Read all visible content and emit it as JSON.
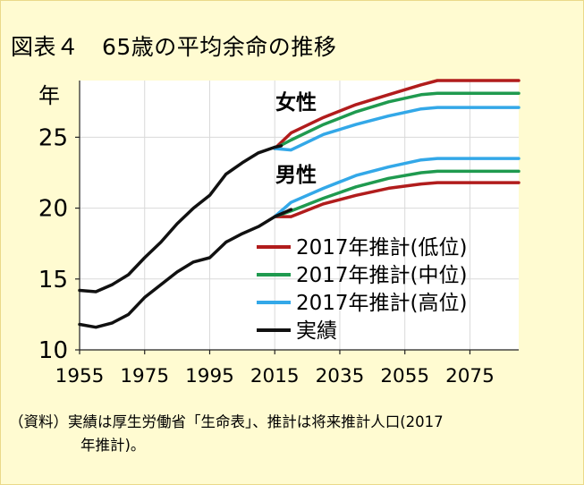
{
  "title": "図表４　65歳の平均余命の推移",
  "note_line1": "（資料）実績は厚生労働省「生命表」、推計は将来推計人口(2017",
  "note_line2": "年推計)。",
  "colors": {
    "low": "#b11c1c",
    "mid": "#1f9a4f",
    "high": "#33a8e8",
    "actual": "#111111",
    "background": "#fffbd1",
    "plot_background": "#ffffff"
  },
  "chart_data": {
    "type": "line",
    "title": "図表４　65歳の平均余命の推移",
    "xlabel": "",
    "ylabel": "年",
    "xlim": [
      1955,
      2090
    ],
    "ylim": [
      10,
      29
    ],
    "xticks": [
      1955,
      1975,
      1995,
      2015,
      2035,
      2055,
      2075
    ],
    "yticks": [
      10,
      15,
      20,
      25
    ],
    "grid": true,
    "legend_position": "bottom-right",
    "annotations": [
      "女性",
      "男性"
    ],
    "series": [
      {
        "name": "2017年推計(低位)",
        "color_key": "low",
        "group": "女性",
        "points": [
          [
            2015,
            24.2
          ],
          [
            2020,
            25.3
          ],
          [
            2030,
            26.4
          ],
          [
            2040,
            27.3
          ],
          [
            2050,
            28.0
          ],
          [
            2060,
            28.7
          ],
          [
            2065,
            29.0
          ],
          [
            2090,
            29.0
          ]
        ]
      },
      {
        "name": "2017年推計(中位)",
        "color_key": "mid",
        "group": "女性",
        "points": [
          [
            2015,
            24.2
          ],
          [
            2020,
            24.8
          ],
          [
            2030,
            25.9
          ],
          [
            2040,
            26.8
          ],
          [
            2050,
            27.5
          ],
          [
            2060,
            28.0
          ],
          [
            2065,
            28.1
          ],
          [
            2090,
            28.1
          ]
        ]
      },
      {
        "name": "2017年推計(高位)",
        "color_key": "high",
        "group": "女性",
        "points": [
          [
            2015,
            24.2
          ],
          [
            2020,
            24.1
          ],
          [
            2030,
            25.2
          ],
          [
            2040,
            25.9
          ],
          [
            2050,
            26.5
          ],
          [
            2060,
            27.0
          ],
          [
            2065,
            27.1
          ],
          [
            2090,
            27.1
          ]
        ]
      },
      {
        "name": "2017年推計(低位)",
        "color_key": "low",
        "group": "男性",
        "points": [
          [
            2015,
            19.4
          ],
          [
            2020,
            19.4
          ],
          [
            2030,
            20.3
          ],
          [
            2040,
            20.9
          ],
          [
            2050,
            21.4
          ],
          [
            2060,
            21.7
          ],
          [
            2065,
            21.8
          ],
          [
            2090,
            21.8
          ]
        ]
      },
      {
        "name": "2017年推計(中位)",
        "color_key": "mid",
        "group": "男性",
        "points": [
          [
            2015,
            19.4
          ],
          [
            2020,
            19.8
          ],
          [
            2030,
            20.7
          ],
          [
            2040,
            21.5
          ],
          [
            2050,
            22.1
          ],
          [
            2060,
            22.5
          ],
          [
            2065,
            22.6
          ],
          [
            2090,
            22.6
          ]
        ]
      },
      {
        "name": "2017年推計(高位)",
        "color_key": "high",
        "group": "男性",
        "points": [
          [
            2015,
            19.4
          ],
          [
            2020,
            20.4
          ],
          [
            2030,
            21.4
          ],
          [
            2040,
            22.3
          ],
          [
            2050,
            22.9
          ],
          [
            2060,
            23.4
          ],
          [
            2065,
            23.5
          ],
          [
            2090,
            23.5
          ]
        ]
      },
      {
        "name": "実績",
        "color_key": "actual",
        "group": "女性",
        "points": [
          [
            1955,
            14.2
          ],
          [
            1960,
            14.1
          ],
          [
            1965,
            14.6
          ],
          [
            1970,
            15.3
          ],
          [
            1975,
            16.5
          ],
          [
            1980,
            17.6
          ],
          [
            1985,
            18.9
          ],
          [
            1990,
            20.0
          ],
          [
            1995,
            20.9
          ],
          [
            2000,
            22.4
          ],
          [
            2005,
            23.2
          ],
          [
            2010,
            23.9
          ],
          [
            2015,
            24.3
          ],
          [
            2017,
            24.4
          ]
        ]
      },
      {
        "name": "実績",
        "color_key": "actual",
        "group": "男性",
        "points": [
          [
            1955,
            11.8
          ],
          [
            1960,
            11.6
          ],
          [
            1965,
            11.9
          ],
          [
            1970,
            12.5
          ],
          [
            1975,
            13.7
          ],
          [
            1980,
            14.6
          ],
          [
            1985,
            15.5
          ],
          [
            1990,
            16.2
          ],
          [
            1995,
            16.5
          ],
          [
            2000,
            17.6
          ],
          [
            2005,
            18.2
          ],
          [
            2010,
            18.7
          ],
          [
            2015,
            19.4
          ],
          [
            2020,
            19.9
          ]
        ]
      }
    ],
    "legend": [
      {
        "label": "2017年推計(低位)",
        "color_key": "low"
      },
      {
        "label": "2017年推計(中位)",
        "color_key": "mid"
      },
      {
        "label": "2017年推計(高位)",
        "color_key": "high"
      },
      {
        "label": "実績",
        "color_key": "actual"
      }
    ]
  }
}
